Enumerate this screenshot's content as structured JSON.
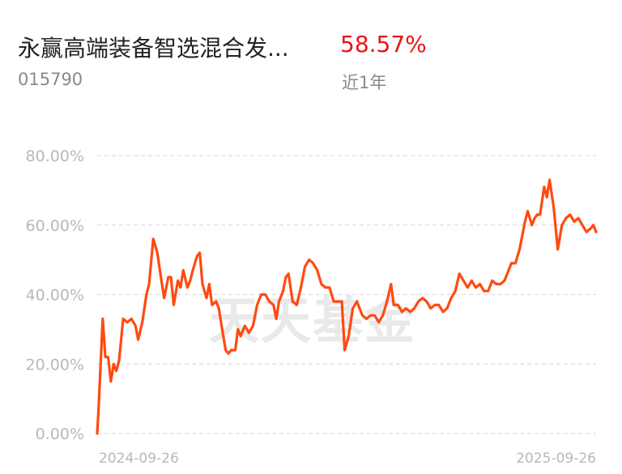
{
  "header": {
    "fund_name": "永赢高端装备智选混合发...",
    "fund_code": "015790",
    "return_value": "58.57%",
    "return_period": "近1年"
  },
  "watermark": "天天基金",
  "colors": {
    "line": "#ff4a12",
    "return_text": "#e8141a",
    "grid": "#dddddd"
  },
  "chart_data": {
    "type": "line",
    "title": "",
    "xlabel": "",
    "ylabel": "",
    "ylim": [
      0,
      80
    ],
    "yticks": [
      0,
      20,
      40,
      60,
      80
    ],
    "ytick_labels": [
      "0.00%",
      "20.00%",
      "40.00%",
      "60.00%",
      "80.00%"
    ],
    "x_range": [
      "2024-09-26",
      "2025-09-26"
    ],
    "xtick_labels": [
      "2024-09-26",
      "2025-09-26"
    ],
    "grid": true,
    "series": [
      {
        "x": [
          "2024-09-26",
          "2024-09-27",
          "2024-09-30",
          "2024-10-02",
          "2024-10-04",
          "2024-10-06",
          "2024-10-08",
          "2024-10-10",
          "2024-10-12",
          "2024-10-15",
          "2024-10-18",
          "2024-10-21",
          "2024-10-24",
          "2024-10-26",
          "2024-10-29",
          "2024-11-01",
          "2024-11-03",
          "2024-11-06",
          "2024-11-09",
          "2024-11-12",
          "2024-11-14",
          "2024-11-17",
          "2024-11-19",
          "2024-11-21",
          "2024-11-24",
          "2024-11-26",
          "2024-11-28",
          "2024-12-01",
          "2024-12-03",
          "2024-12-05",
          "2024-12-08",
          "2024-12-10",
          "2024-12-12",
          "2024-12-15",
          "2024-12-17",
          "2024-12-19",
          "2024-12-22",
          "2024-12-24",
          "2024-12-26",
          "2024-12-29",
          "2024-12-31",
          "2025-01-02",
          "2025-01-05",
          "2025-01-07",
          "2025-01-09",
          "2025-01-12",
          "2025-01-15",
          "2025-01-18",
          "2025-01-21",
          "2025-01-24",
          "2025-01-27",
          "2025-01-30",
          "2025-02-02",
          "2025-02-04",
          "2025-02-06",
          "2025-02-09",
          "2025-02-11",
          "2025-02-13",
          "2025-02-16",
          "2025-02-19",
          "2025-02-22",
          "2025-02-25",
          "2025-02-28",
          "2025-03-03",
          "2025-03-06",
          "2025-03-09",
          "2025-03-12",
          "2025-03-15",
          "2025-03-18",
          "2025-03-21",
          "2025-03-24",
          "2025-03-26",
          "2025-03-29",
          "2025-04-01",
          "2025-04-04",
          "2025-04-06",
          "2025-04-08",
          "2025-04-11",
          "2025-04-14",
          "2025-04-17",
          "2025-04-20",
          "2025-04-23",
          "2025-04-26",
          "2025-04-29",
          "2025-05-01",
          "2025-05-04",
          "2025-05-07",
          "2025-05-10",
          "2025-05-13",
          "2025-05-16",
          "2025-05-19",
          "2025-05-22",
          "2025-05-25",
          "2025-05-28",
          "2025-05-31",
          "2025-06-03",
          "2025-06-06",
          "2025-06-09",
          "2025-06-12",
          "2025-06-15",
          "2025-06-18",
          "2025-06-21",
          "2025-06-24",
          "2025-06-27",
          "2025-06-30",
          "2025-07-03",
          "2025-07-06",
          "2025-07-09",
          "2025-07-12",
          "2025-07-15",
          "2025-07-18",
          "2025-07-21",
          "2025-07-23",
          "2025-07-26",
          "2025-07-29",
          "2025-08-01",
          "2025-08-03",
          "2025-08-05",
          "2025-08-07",
          "2025-08-10",
          "2025-08-12",
          "2025-08-14",
          "2025-08-16",
          "2025-08-19",
          "2025-08-21",
          "2025-08-23",
          "2025-08-26",
          "2025-08-29",
          "2025-09-01",
          "2025-09-04",
          "2025-09-07",
          "2025-09-10",
          "2025-09-13",
          "2025-09-16",
          "2025-09-19",
          "2025-09-22",
          "2025-09-24",
          "2025-09-26"
        ],
        "values": [
          0.0,
          7.0,
          33.0,
          22.0,
          22.0,
          15.0,
          20.0,
          18.0,
          21.0,
          33.0,
          32.0,
          33.0,
          31.0,
          27.0,
          32.0,
          40.0,
          43.0,
          56.0,
          52.0,
          44.0,
          39.0,
          45.0,
          45.0,
          37.0,
          44.0,
          42.0,
          47.0,
          42.0,
          44.0,
          47.0,
          51.0,
          52.0,
          43.0,
          39.0,
          43.0,
          37.0,
          38.0,
          36.0,
          31.0,
          24.0,
          23.0,
          24.0,
          24.0,
          30.0,
          28.0,
          31.0,
          29.0,
          31.0,
          37.0,
          40.0,
          40.0,
          38.0,
          37.0,
          33.0,
          38.0,
          41.0,
          45.0,
          46.0,
          38.0,
          37.0,
          42.0,
          48.0,
          50.0,
          49.0,
          47.0,
          43.0,
          42.0,
          42.0,
          38.0,
          38.0,
          38.0,
          24.0,
          28.0,
          36.0,
          38.0,
          36.0,
          34.0,
          33.0,
          34.0,
          34.0,
          32.0,
          34.0,
          38.0,
          43.0,
          37.0,
          37.0,
          35.0,
          36.0,
          35.0,
          36.0,
          38.0,
          39.0,
          38.0,
          36.0,
          37.0,
          37.0,
          35.0,
          36.0,
          39.0,
          41.0,
          46.0,
          44.0,
          42.0,
          44.0,
          42.0,
          43.0,
          41.0,
          41.0,
          44.0,
          43.0,
          43.0,
          44.0,
          46.0,
          49.0,
          49.0,
          53.0,
          57.0,
          61.0,
          64.0,
          60.0,
          62.0,
          63.0,
          63.0,
          71.0,
          68.0,
          73.0,
          65.0,
          53.0,
          60.0,
          62.0,
          63.0,
          61.0,
          62.0,
          60.0,
          58.0,
          59.0,
          60.0,
          58.0
        ]
      }
    ]
  }
}
